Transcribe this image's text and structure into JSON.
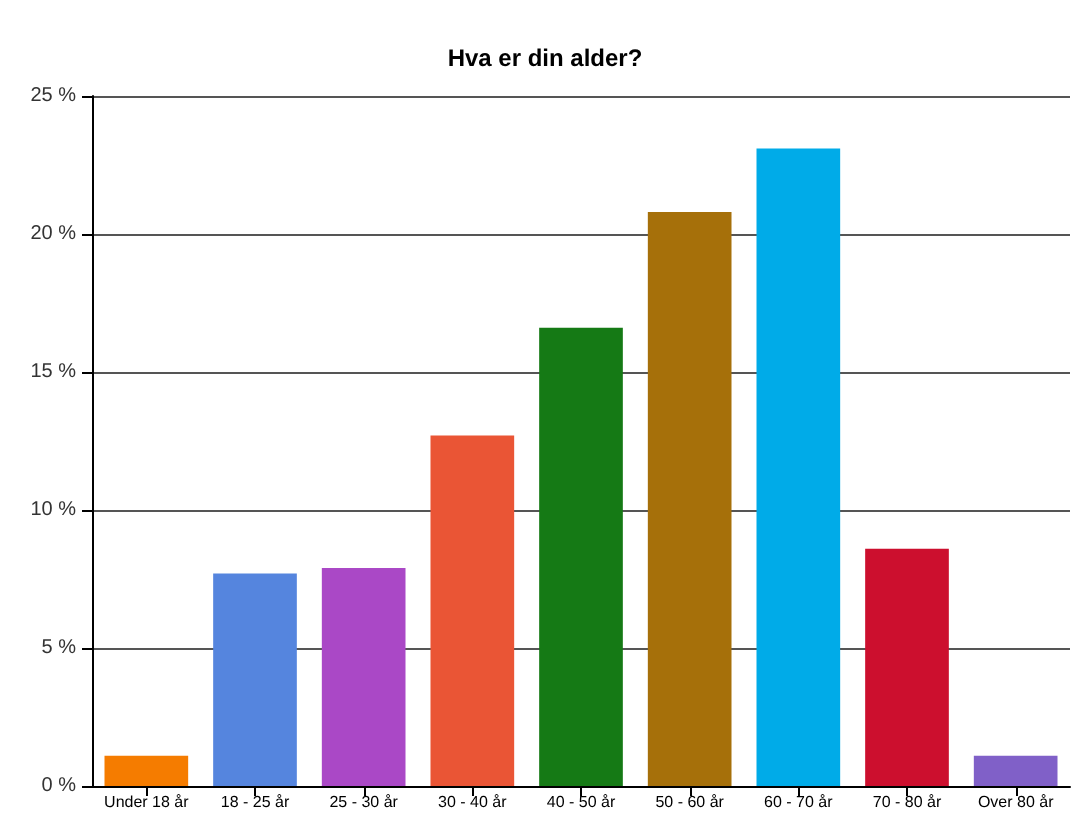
{
  "chart_data": {
    "type": "bar",
    "title": "Hva er din alder?",
    "categories": [
      "Under 18 år",
      "18 - 25 år",
      "25 - 30 år",
      "30 - 40 år",
      "40 - 50 år",
      "50 - 60 år",
      "60 - 70 år",
      "70 - 80 år",
      "Over 80 år"
    ],
    "values": [
      1.1,
      7.7,
      7.9,
      12.7,
      16.6,
      20.8,
      23.1,
      8.6,
      1.1
    ],
    "colors": [
      "#f57c00",
      "#5585de",
      "#aa48c6",
      "#ea5535",
      "#157a15",
      "#a6700a",
      "#00abe8",
      "#cc0f2e",
      "#8060c8"
    ],
    "ylim": [
      0,
      25
    ],
    "yticks": [
      {
        "value": 0,
        "label": "0 %"
      },
      {
        "value": 5,
        "label": "5 %"
      },
      {
        "value": 10,
        "label": "10 %"
      },
      {
        "value": 15,
        "label": "15 %"
      },
      {
        "value": 20,
        "label": "20 %"
      },
      {
        "value": 25,
        "label": "25 %"
      }
    ],
    "grid": "y"
  }
}
